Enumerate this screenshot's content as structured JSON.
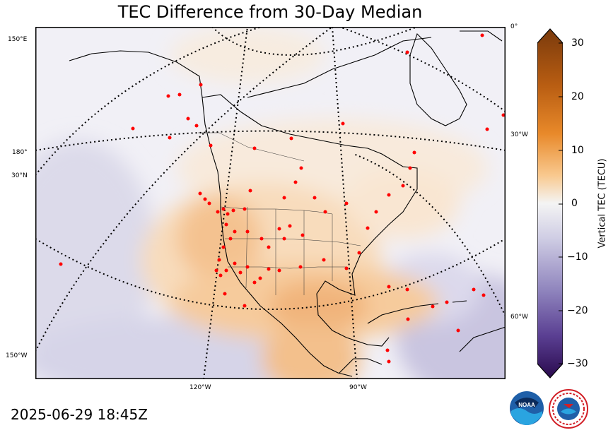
{
  "title": "TEC Difference from 30-Day Median",
  "timestamp": "2025-06-29 18:45Z",
  "map": {
    "lon_labels": {
      "left_150e": "150°E",
      "left_180": "180°",
      "left_30n": "30°N",
      "left_150w": "150°W",
      "bottom_120w": "120°W",
      "bottom_90w": "90°W",
      "right_0": "0°",
      "right_30w": "30°W",
      "right_60w": "60°W"
    }
  },
  "colorbar": {
    "label": "Vertical TEC (TECU)",
    "ticks": [
      "30",
      "20",
      "10",
      "0",
      "−10",
      "−20",
      "−30"
    ],
    "min": -30,
    "max": 30
  },
  "colors": {
    "positive": "#e8892a",
    "negative": "#6b5ba6",
    "station": "#ff0000"
  },
  "logos": {
    "noaa": "NOAA",
    "nws": "NATIONAL WEATHER SERVICE"
  }
}
